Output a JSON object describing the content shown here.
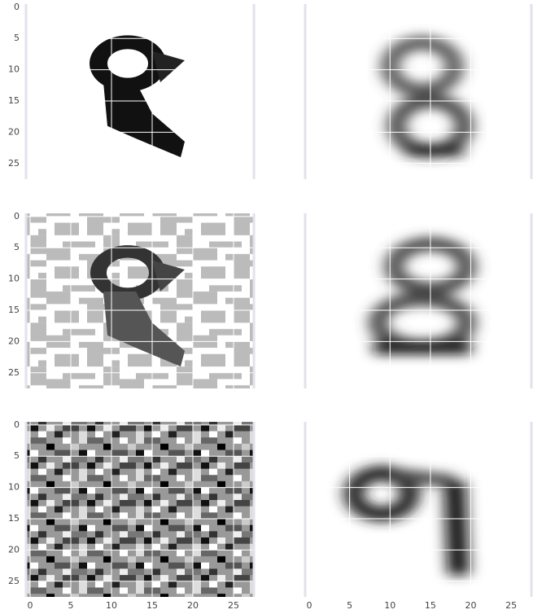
{
  "chart_data": [
    {
      "type": "image",
      "xlim": [
        -0.5,
        27.5
      ],
      "ylim": [
        27.5,
        -0.5
      ],
      "xticks": [
        0,
        5,
        10,
        15,
        20,
        25
      ],
      "yticks": [
        0,
        5,
        10,
        15,
        20,
        25
      ],
      "x_tick_labels": false,
      "y_tick_labels": true,
      "grid": true
    },
    {
      "type": "image",
      "xlim": [
        -0.5,
        27.5
      ],
      "ylim": [
        27.5,
        -0.5
      ],
      "xticks": [
        0,
        5,
        10,
        15,
        20,
        25
      ],
      "yticks": [
        0,
        5,
        10,
        15,
        20,
        25
      ],
      "x_tick_labels": false,
      "y_tick_labels": false,
      "grid": true
    },
    {
      "type": "image",
      "xlim": [
        -0.5,
        27.5
      ],
      "ylim": [
        27.5,
        -0.5
      ],
      "xticks": [
        0,
        5,
        10,
        15,
        20,
        25
      ],
      "yticks": [
        0,
        5,
        10,
        15,
        20,
        25
      ],
      "x_tick_labels": false,
      "y_tick_labels": true,
      "grid": true
    },
    {
      "type": "image",
      "xlim": [
        -0.5,
        27.5
      ],
      "ylim": [
        27.5,
        -0.5
      ],
      "xticks": [
        0,
        5,
        10,
        15,
        20,
        25
      ],
      "yticks": [
        0,
        5,
        10,
        15,
        20,
        25
      ],
      "x_tick_labels": false,
      "y_tick_labels": false,
      "grid": true
    },
    {
      "type": "image",
      "xlim": [
        -0.5,
        27.5
      ],
      "ylim": [
        27.5,
        -0.5
      ],
      "xticks": [
        0,
        5,
        10,
        15,
        20,
        25
      ],
      "yticks": [
        0,
        5,
        10,
        15,
        20,
        25
      ],
      "x_tick_labels": true,
      "y_tick_labels": true,
      "grid": true
    },
    {
      "type": "image",
      "xlim": [
        -0.5,
        27.5
      ],
      "ylim": [
        27.5,
        -0.5
      ],
      "xticks": [
        0,
        5,
        10,
        15,
        20,
        25
      ],
      "yticks": [
        0,
        5,
        10,
        15,
        20,
        25
      ],
      "x_tick_labels": true,
      "y_tick_labels": false,
      "grid": true
    }
  ]
}
